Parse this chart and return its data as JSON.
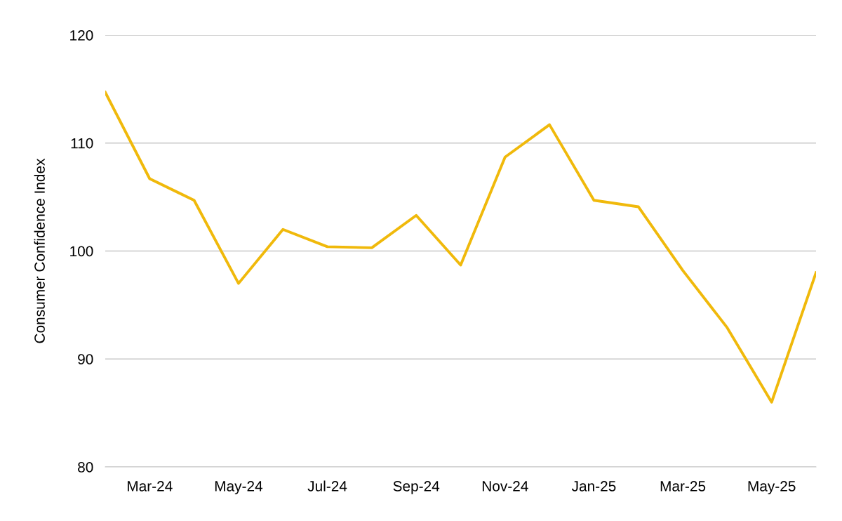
{
  "chart_data": {
    "type": "line",
    "ylabel": "Consumer Confidence Index",
    "categories": [
      null,
      "Mar-24",
      null,
      "May-24",
      null,
      "Jul-24",
      null,
      "Sep-24",
      null,
      "Nov-24",
      null,
      "Jan-25",
      null,
      "Mar-25",
      null,
      "May-25",
      null
    ],
    "series": [
      {
        "color": "#f0b90b",
        "values": [
          114.7,
          106.7,
          104.7,
          97.0,
          102.0,
          100.4,
          100.3,
          103.3,
          98.7,
          108.7,
          111.7,
          104.7,
          104.1,
          98.2,
          92.9,
          86.0,
          98.0
        ]
      }
    ],
    "ylim": [
      80,
      120
    ],
    "yticks": [
      80,
      90,
      100,
      110,
      120
    ],
    "grid": "y",
    "legend": false,
    "marker": "none",
    "line_style": "solid"
  }
}
